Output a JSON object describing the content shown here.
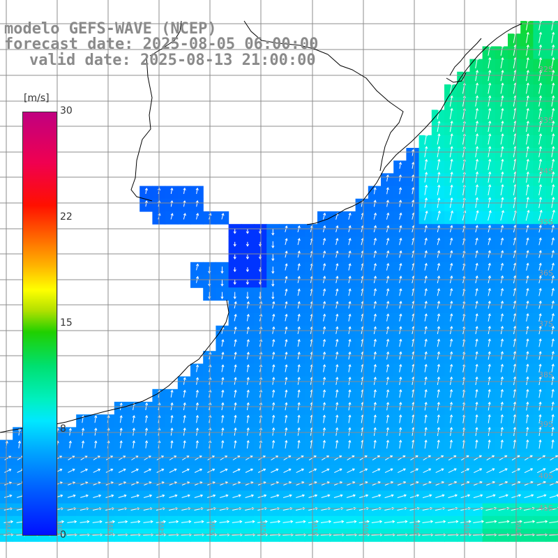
{
  "title": {
    "line1": "modelo GEFS-WAVE (NCEP)",
    "line2": "forecast date: 2025-08-05 06:00:00",
    "line3": "valid date: 2025-08-13 21:00:00"
  },
  "colorbar": {
    "unit": "[m/s]",
    "ticks": [
      "30",
      "22",
      "15",
      "8",
      "0"
    ],
    "range": [
      0,
      30
    ]
  },
  "lat_labels": [
    "32S",
    "33S",
    "34S",
    "35S",
    "36S",
    "37S",
    "38S",
    "39S",
    "40S",
    "41S"
  ],
  "lon_labels": [
    "57W",
    "56W",
    "55W",
    "54W",
    "53W",
    "52W",
    "51W",
    "50W",
    "49W",
    "48W",
    "47W"
  ],
  "colors": {
    "land": "#ffffff",
    "coast": "#000000",
    "grid": "#8c8c8c",
    "arrow": "#ffffff"
  }
}
